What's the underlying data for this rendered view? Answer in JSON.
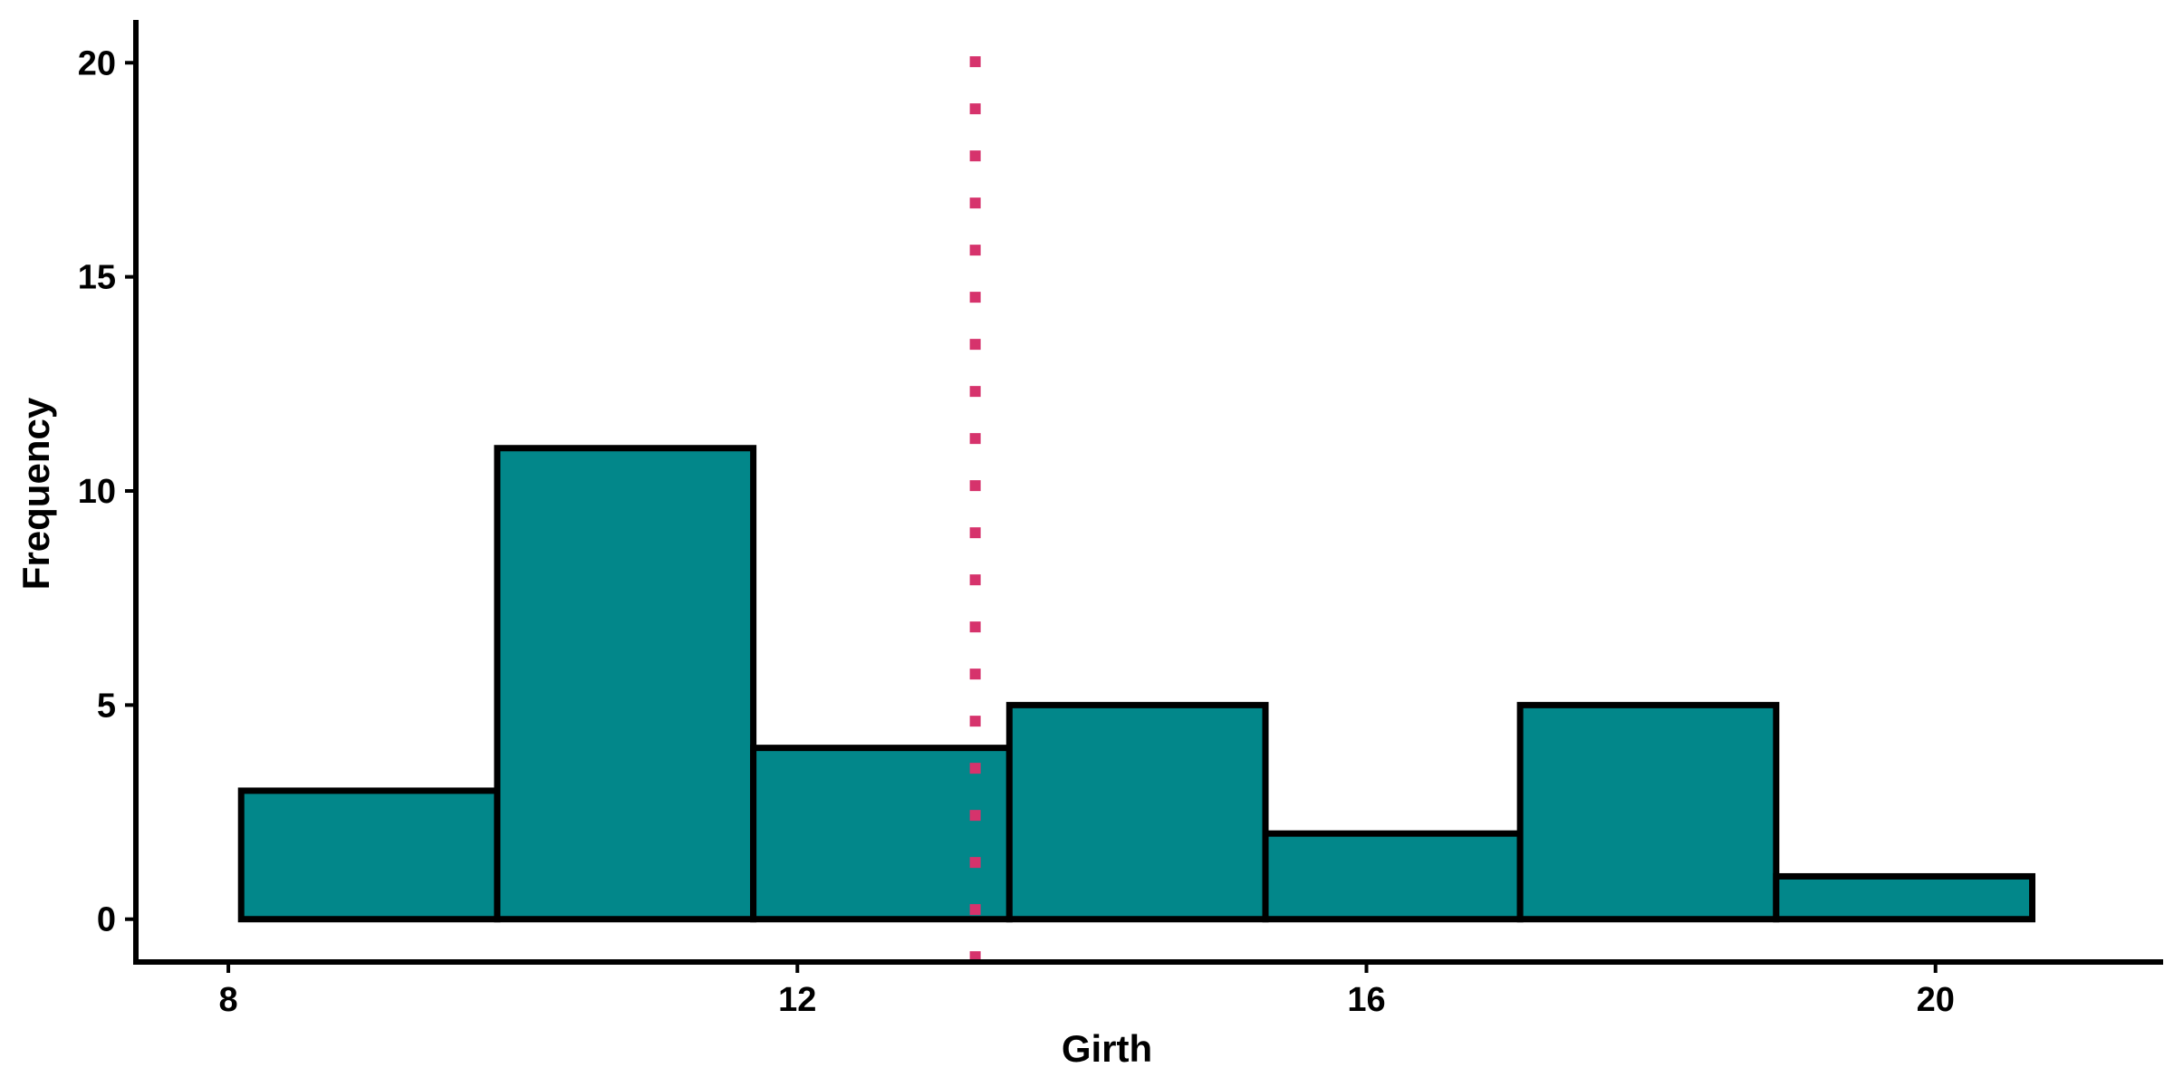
{
  "chart_data": {
    "type": "histogram",
    "xlabel": "Girth",
    "ylabel": "Frequency",
    "x_ticks": [
      8,
      12,
      16,
      20
    ],
    "y_ticks": [
      0,
      5,
      10,
      15,
      20
    ],
    "xlim": [
      7.35,
      21.6
    ],
    "ylim": [
      -1,
      21
    ],
    "bins": [
      {
        "start": 8.09,
        "end": 9.89,
        "count": 3
      },
      {
        "start": 9.89,
        "end": 11.69,
        "count": 11
      },
      {
        "start": 11.69,
        "end": 13.49,
        "count": 4
      },
      {
        "start": 13.49,
        "end": 15.29,
        "count": 5
      },
      {
        "start": 15.29,
        "end": 17.08,
        "count": 2
      },
      {
        "start": 17.08,
        "end": 18.88,
        "count": 5
      },
      {
        "start": 18.88,
        "end": 20.68,
        "count": 1
      }
    ],
    "vline": {
      "x": 13.25,
      "style": "dotted",
      "color": "#d6336c"
    },
    "bar_color": "#02878a",
    "grid": false
  }
}
